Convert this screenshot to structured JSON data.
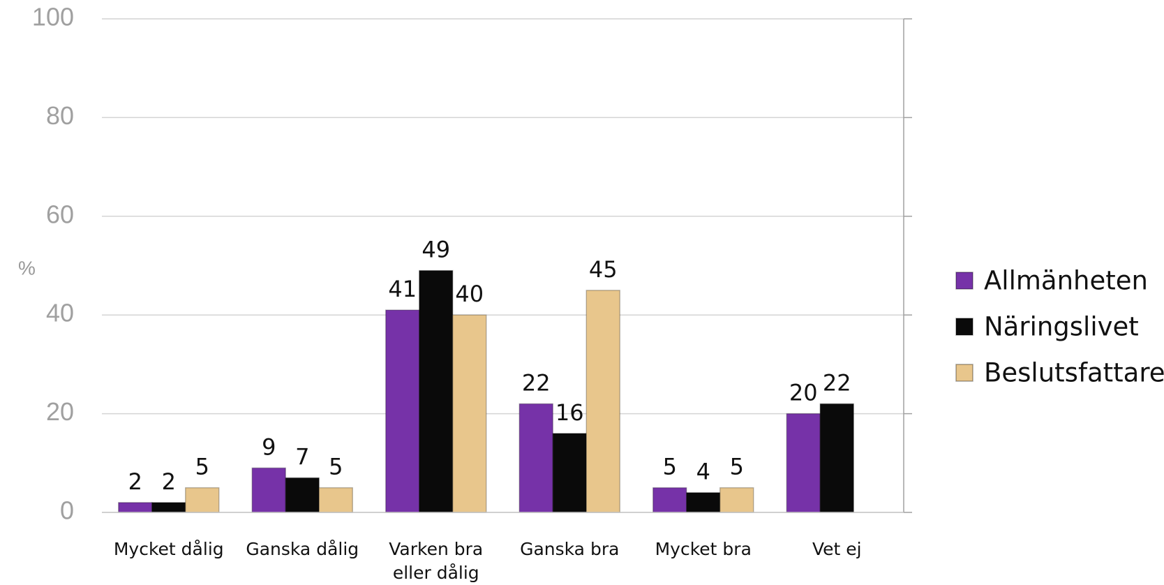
{
  "chart_data": {
    "type": "bar",
    "y_label": "%",
    "categories": [
      "Mycket dålig",
      "Ganska dålig",
      "Varken bra\neller dålig",
      "Ganska bra",
      "Mycket bra",
      "Vet ej"
    ],
    "series": [
      {
        "name": "Allmänheten",
        "color": "#7632a8",
        "values": [
          2,
          9,
          41,
          22,
          5,
          20
        ]
      },
      {
        "name": "Näringslivet",
        "color": "#0a0a0a",
        "values": [
          2,
          7,
          49,
          16,
          4,
          22
        ]
      },
      {
        "name": "Beslutsfattare",
        "color": "#e8c68c",
        "values": [
          5,
          5,
          40,
          45,
          5,
          null
        ]
      }
    ],
    "ylim": [
      0,
      100
    ],
    "yticks": [
      0,
      20,
      40,
      60,
      80,
      100
    ],
    "grid": true,
    "legend": "right"
  }
}
